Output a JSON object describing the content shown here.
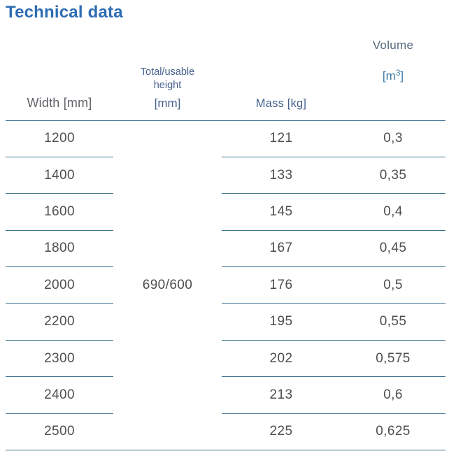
{
  "title": "Technical data",
  "colors": {
    "title_blue": "#2e6db4",
    "header_slate_blue": "#46618c",
    "header_gray": "#5f6368",
    "unit_blue": "#3e7ca6",
    "line_steel_blue": "#3d7191",
    "data_gray": "#4c4e50"
  },
  "table": {
    "headers": {
      "width": "Width [mm]",
      "height_line1": "Total/usable",
      "height_line2": "height",
      "height_unit": "[mm]",
      "mass": "Mass [kg]",
      "volume": "Volume",
      "volume_unit_open": "[m",
      "volume_unit_sup": "3",
      "volume_unit_close": "]"
    },
    "merged_height_value": "690/600",
    "rows": [
      {
        "width": "1200",
        "mass": "121",
        "volume": "0,3"
      },
      {
        "width": "1400",
        "mass": "133",
        "volume": "0,35"
      },
      {
        "width": "1600",
        "mass": "145",
        "volume": "0,4"
      },
      {
        "width": "1800",
        "mass": "167",
        "volume": "0,45"
      },
      {
        "width": "2000",
        "mass": "176",
        "volume": "0,5"
      },
      {
        "width": "2200",
        "mass": "195",
        "volume": "0,55"
      },
      {
        "width": "2300",
        "mass": "202",
        "volume": "0,575"
      },
      {
        "width": "2400",
        "mass": "213",
        "volume": "0,6"
      },
      {
        "width": "2500",
        "mass": "225",
        "volume": "0,625"
      }
    ]
  }
}
